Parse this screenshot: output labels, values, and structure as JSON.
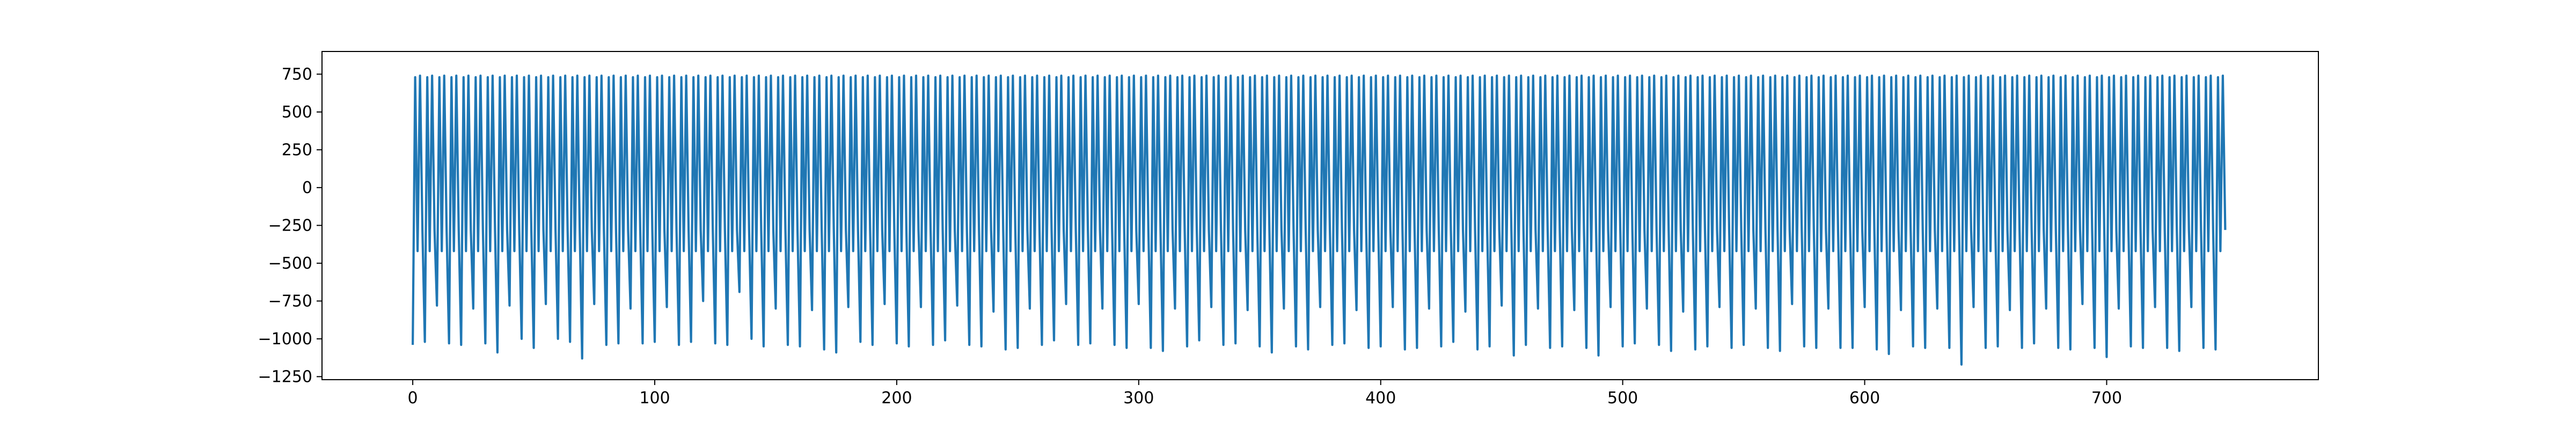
{
  "chart_data": {
    "type": "line",
    "title": "",
    "xlabel": "",
    "ylabel": "",
    "xlim": [
      -37.5,
      787.5
    ],
    "ylim": [
      -1270,
      900
    ],
    "xticks": [
      0,
      100,
      200,
      300,
      400,
      500,
      600,
      700
    ],
    "xtick_labels": [
      "0",
      "100",
      "200",
      "300",
      "400",
      "500",
      "600",
      "700"
    ],
    "yticks": [
      -1250,
      -1000,
      -750,
      -500,
      -250,
      0,
      250,
      500,
      750
    ],
    "ytick_labels": [
      "−1250",
      "−1000",
      "−750",
      "−500",
      "−250",
      "0",
      "250",
      "500",
      "750"
    ],
    "grid": false,
    "legend": "none",
    "colors": {
      "line": "#1f77b4",
      "axes": "#000000",
      "background": "#ffffff"
    },
    "series": [
      {
        "cycle_length": 5,
        "num_points": 750,
        "x_start": 0,
        "pattern": [
          -1030,
          730,
          -420,
          740,
          -280
        ],
        "trough_values": [
          -1040,
          -1020,
          -780,
          -1030,
          -1040,
          -800,
          -1030,
          -1090,
          -780,
          -1000,
          -1060,
          -770,
          -1000,
          -1020,
          -1130,
          -770,
          -1040,
          -1030,
          -800,
          -1030,
          -1020,
          -790,
          -1040,
          -1020,
          -750,
          -1030,
          -1040,
          -690,
          -1000,
          -1050,
          -800,
          -1040,
          -1050,
          -810,
          -1070,
          -1090,
          -790,
          -1020,
          -1040,
          -770,
          -1030,
          -1050,
          -790,
          -1040,
          -1010,
          -780,
          -1040,
          -1050,
          -820,
          -1070,
          -1060,
          -800,
          -1040,
          -1010,
          -770,
          -1040,
          -1030,
          -800,
          -1040,
          -1060,
          -770,
          -1060,
          -1080,
          -800,
          -1050,
          -1010,
          -790,
          -1040,
          -1030,
          -810,
          -1050,
          -1090,
          -800,
          -1050,
          -1070,
          -790,
          -1040,
          -1030,
          -810,
          -1060,
          -1050,
          -790,
          -1070,
          -1060,
          -800,
          -1050,
          -1020,
          -820,
          -1070,
          -1050,
          -780,
          -1110,
          -1040,
          -800,
          -1060,
          -1050,
          -810,
          -1060,
          -1110,
          -790,
          -1050,
          -1030,
          -800,
          -1040,
          -1080,
          -820,
          -1070,
          -1050,
          -790,
          -1060,
          -1040,
          -800,
          -1060,
          -1080,
          -770,
          -1050,
          -1060,
          -800,
          -1060,
          -1060,
          -790,
          -1070,
          -1100,
          -810,
          -1050,
          -1060,
          -800,
          -1060,
          -1170,
          -790,
          -1060,
          -1050,
          -810,
          -1060,
          -1030,
          -800,
          -1060,
          -1070,
          -770,
          -1060,
          -1120,
          -800,
          -1050,
          -1060,
          -790,
          -1060,
          -1080,
          -790,
          -1060,
          -1070,
          -780,
          -1080
        ]
      }
    ]
  }
}
